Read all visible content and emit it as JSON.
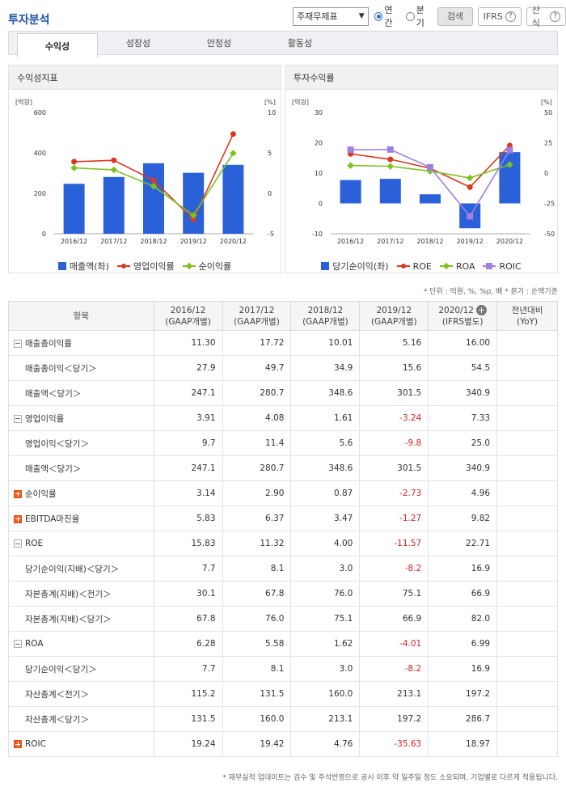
{
  "header": {
    "title": "투자분석",
    "select_value": "주재무제표",
    "radio_annual": "연간",
    "radio_quarter": "분기",
    "search_label": "검색",
    "ifrs_label": "IFRS",
    "formula_label": "산식",
    "help_glyph": "?"
  },
  "tabs": [
    {
      "label": "수익성",
      "active": true
    },
    {
      "label": "성장성",
      "active": false
    },
    {
      "label": "안정성",
      "active": false
    },
    {
      "label": "활동성",
      "active": false
    }
  ],
  "chart_left": {
    "title": "수익성지표",
    "left_unit": "[억원]",
    "right_unit": "[%]",
    "chart_data": {
      "type": "bar",
      "categories": [
        "2016/12",
        "2017/12",
        "2018/12",
        "2019/12",
        "2020/12"
      ],
      "series": [
        {
          "name": "매출액(좌)",
          "kind": "bar",
          "axis": "left",
          "values": [
            247.1,
            280.7,
            348.6,
            301.5,
            340.9
          ],
          "color": "#2a61d9"
        },
        {
          "name": "영업이익률",
          "kind": "line",
          "axis": "right",
          "values": [
            3.91,
            4.08,
            1.61,
            -3.24,
            7.33
          ],
          "color": "#d9381e"
        },
        {
          "name": "순이익률",
          "kind": "line",
          "axis": "right",
          "values": [
            3.14,
            2.9,
            0.87,
            -2.73,
            4.96
          ],
          "color": "#7dc21e"
        }
      ],
      "ylim_left": [
        0,
        600
      ],
      "yticks_left": [
        "600",
        "400",
        "200",
        "0"
      ],
      "ylim_right": [
        -5,
        10
      ],
      "yticks_right": [
        "10",
        "5",
        "0",
        "-5"
      ]
    }
  },
  "chart_right": {
    "title": "투자수익률",
    "left_unit": "[억원]",
    "right_unit": "[%]",
    "chart_data": {
      "type": "bar",
      "categories": [
        "2016/12",
        "2017/12",
        "2018/12",
        "2019/12",
        "2020/12"
      ],
      "series": [
        {
          "name": "당기순이익(좌)",
          "kind": "bar",
          "axis": "left",
          "values": [
            7.7,
            8.1,
            3.0,
            -8.2,
            16.9
          ],
          "color": "#2a61d9"
        },
        {
          "name": "ROE",
          "kind": "line",
          "axis": "right",
          "values": [
            15.83,
            11.32,
            4.0,
            -11.57,
            22.71
          ],
          "color": "#d9381e"
        },
        {
          "name": "ROA",
          "kind": "line",
          "axis": "right",
          "values": [
            6.28,
            5.58,
            1.62,
            -4.01,
            6.99
          ],
          "color": "#7dc21e"
        },
        {
          "name": "ROIC",
          "kind": "line",
          "axis": "right",
          "values": [
            19.24,
            19.42,
            4.76,
            -35.63,
            18.97
          ],
          "color": "#a07fe0"
        }
      ],
      "ylim_left": [
        -10,
        30
      ],
      "yticks_left": [
        "30",
        "20",
        "10",
        "0",
        "-10"
      ],
      "ylim_right": [
        -50,
        50
      ],
      "yticks_right": [
        "50",
        "25",
        "0",
        "-25",
        "-50"
      ]
    }
  },
  "unit_note": "* 단위 : 억원, %, %p, 배   * 분기 : 순액기준",
  "table": {
    "item_header": "항목",
    "columns": [
      {
        "period": "2016/12",
        "basis": "(GAAP개별)"
      },
      {
        "period": "2017/12",
        "basis": "(GAAP개별)"
      },
      {
        "period": "2018/12",
        "basis": "(GAAP개별)"
      },
      {
        "period": "2019/12",
        "basis": "(GAAP개별)"
      },
      {
        "period": "2020/12",
        "basis": "(IFRS별도)"
      }
    ],
    "yoy_header": "전년대비",
    "yoy_sub": "(YoY)",
    "add_glyph": "+",
    "rows": [
      {
        "label": "매출총이익률",
        "toggle": "minus",
        "values": [
          "11.30",
          "17.72",
          "10.01",
          "5.16",
          "16.00"
        ]
      },
      {
        "label": "매출총이익＜당기＞",
        "values": [
          "27.9",
          "49.7",
          "34.9",
          "15.6",
          "54.5"
        ]
      },
      {
        "label": "매출액＜당기＞",
        "values": [
          "247.1",
          "280.7",
          "348.6",
          "301.5",
          "340.9"
        ]
      },
      {
        "label": "영업이익률",
        "toggle": "minus",
        "values": [
          "3.91",
          "4.08",
          "1.61",
          "-3.24",
          "7.33"
        ]
      },
      {
        "label": "영업이익＜당기＞",
        "values": [
          "9.7",
          "11.4",
          "5.6",
          "-9.8",
          "25.0"
        ]
      },
      {
        "label": "매출액＜당기＞",
        "values": [
          "247.1",
          "280.7",
          "348.6",
          "301.5",
          "340.9"
        ]
      },
      {
        "label": "순이익률",
        "toggle": "plus",
        "values": [
          "3.14",
          "2.90",
          "0.87",
          "-2.73",
          "4.96"
        ]
      },
      {
        "label": "EBITDA마진율",
        "toggle": "plus",
        "values": [
          "5.83",
          "6.37",
          "3.47",
          "-1.27",
          "9.82"
        ]
      },
      {
        "label": "ROE",
        "toggle": "minus",
        "values": [
          "15.83",
          "11.32",
          "4.00",
          "-11.57",
          "22.71"
        ]
      },
      {
        "label": "당기순이익(지배)＜당기＞",
        "values": [
          "7.7",
          "8.1",
          "3.0",
          "-8.2",
          "16.9"
        ]
      },
      {
        "label": "자본총계(지배)＜전기＞",
        "values": [
          "30.1",
          "67.8",
          "76.0",
          "75.1",
          "66.9"
        ]
      },
      {
        "label": "자본총계(지배)＜당기＞",
        "values": [
          "67.8",
          "76.0",
          "75.1",
          "66.9",
          "82.0"
        ]
      },
      {
        "label": "ROA",
        "toggle": "minus",
        "values": [
          "6.28",
          "5.58",
          "1.62",
          "-4.01",
          "6.99"
        ]
      },
      {
        "label": "당기순이익＜당기＞",
        "values": [
          "7.7",
          "8.1",
          "3.0",
          "-8.2",
          "16.9"
        ]
      },
      {
        "label": "자산총계＜전기＞",
        "values": [
          "115.2",
          "131.5",
          "160.0",
          "213.1",
          "197.2"
        ]
      },
      {
        "label": "자산총계＜당기＞",
        "values": [
          "131.5",
          "160.0",
          "213.1",
          "197.2",
          "286.7"
        ]
      },
      {
        "label": "ROIC",
        "toggle": "plus",
        "values": [
          "19.24",
          "19.42",
          "4.76",
          "-35.63",
          "18.97"
        ]
      }
    ]
  },
  "footer_note": "* 재무실적 업데이트는 검수 및 주석반영으로 공시 이후 약 일주일 정도 소요되며, 기업별로 다르게 적용됩니다."
}
